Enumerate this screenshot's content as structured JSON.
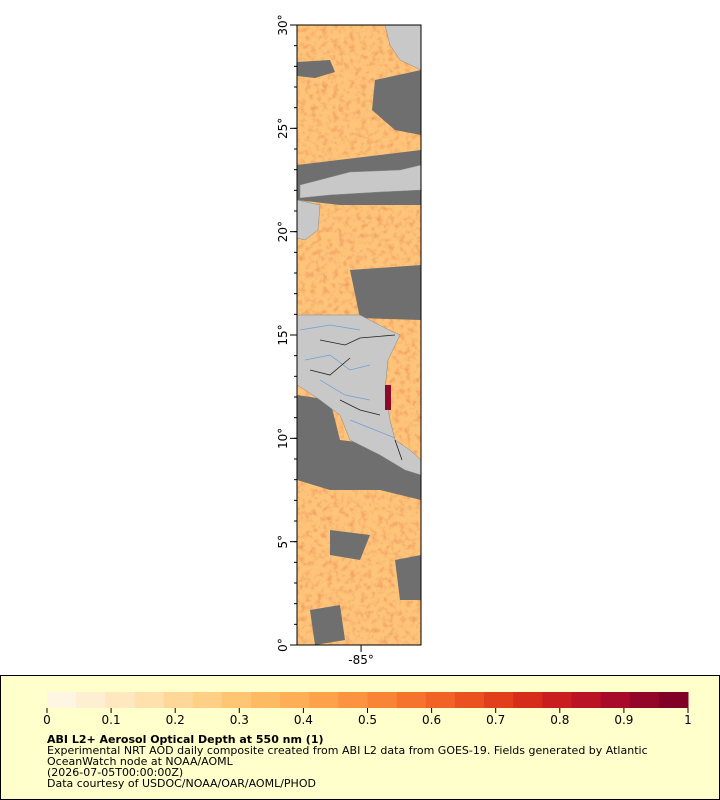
{
  "map": {
    "xlim": [
      -88.1,
      -82.1
    ],
    "ylim": [
      0,
      30
    ],
    "xticks": [
      {
        "value": -85,
        "label": "-85°"
      }
    ],
    "yticks": [
      {
        "value": 0,
        "label": "0°"
      },
      {
        "value": 5,
        "label": "5°"
      },
      {
        "value": 10,
        "label": "10°"
      },
      {
        "value": 15,
        "label": "15°"
      },
      {
        "value": 20,
        "label": "20°"
      },
      {
        "value": 25,
        "label": "25°"
      },
      {
        "value": 30,
        "label": "30°"
      }
    ]
  },
  "legend": {
    "colorbar": {
      "range": [
        0,
        1
      ],
      "ticks": [
        0,
        0.1,
        0.2,
        0.3,
        0.4,
        0.5,
        0.6,
        0.7,
        0.8,
        0.9,
        1
      ],
      "colors": [
        "#fff5e3",
        "#ffefd2",
        "#ffe8c0",
        "#ffe1ad",
        "#ffd899",
        "#ffcf85",
        "#fec572",
        "#feba63",
        "#fdae56",
        "#fda14a",
        "#fc9340",
        "#fa8436",
        "#f6732d",
        "#f16226",
        "#ea5020",
        "#e23e1c",
        "#d82c1a",
        "#ca1d1f",
        "#b91325",
        "#a70b29",
        "#940629",
        "#800026"
      ]
    },
    "title": "ABI L2+ Aerosol Optical Depth at 550 nm (1)",
    "lines": [
      "Experimental NRT AOD daily composite created from ABI L2 data from GOES-19. Fields generated by Atlantic",
      "OceanWatch node at NOAA/AOML",
      "(2026-07-05T00:00:00Z)",
      "Data courtesy of USDOC/NOAA/OAR/AOML/PHOD"
    ]
  }
}
